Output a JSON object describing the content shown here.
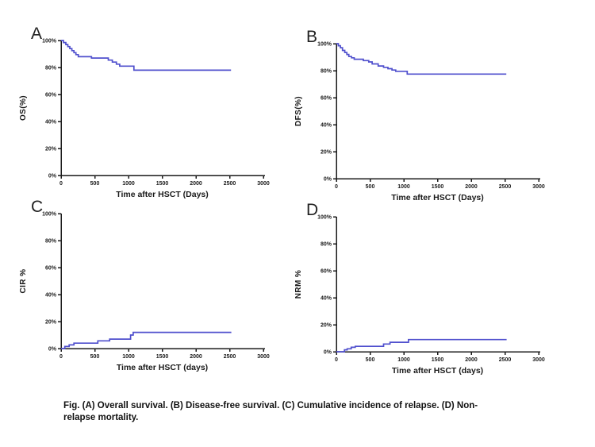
{
  "figure": {
    "background": "#ffffff",
    "curve_color": "#4f4fcd",
    "axis_color": "#1a1a1a",
    "text_color": "#1a1a1a"
  },
  "caption": {
    "line1": "Fig. (A) Overall survival. (B) Disease-free survival. (C) Cumulative incidence of relapse. (D) Non-",
    "line2": "relapse mortality."
  },
  "chart_data": [
    {
      "panel": "A",
      "type": "line",
      "subtype": "kaplan-meier-step",
      "title": "",
      "xlabel": "Time after HSCT (Days)",
      "ylabel": "OS(%)",
      "xlim": [
        0,
        3000
      ],
      "ylim": [
        0,
        100
      ],
      "xticks": [
        0,
        500,
        1000,
        1500,
        2000,
        2500,
        3000
      ],
      "xtick_labels": [
        "0",
        "500",
        "1000",
        "1500",
        "2000",
        "2500",
        "3000"
      ],
      "yticks": [
        0,
        20,
        40,
        60,
        80,
        100
      ],
      "ytick_labels": [
        "0%",
        "20%",
        "40%",
        "60%",
        "80%",
        "100%"
      ],
      "grid": false,
      "legend": "none",
      "series": [
        {
          "name": "OS",
          "points": [
            [
              0,
              100
            ],
            [
              35,
              98.5
            ],
            [
              70,
              97
            ],
            [
              100,
              95.5
            ],
            [
              130,
              94
            ],
            [
              160,
              92.5
            ],
            [
              190,
              91
            ],
            [
              220,
              89.5
            ],
            [
              255,
              88
            ],
            [
              450,
              87
            ],
            [
              700,
              85.5
            ],
            [
              760,
              84
            ],
            [
              820,
              82.5
            ],
            [
              870,
              81
            ],
            [
              1080,
              78
            ],
            [
              2520,
              78
            ]
          ]
        }
      ]
    },
    {
      "panel": "B",
      "type": "line",
      "subtype": "kaplan-meier-step",
      "title": "",
      "xlabel": "Time after HSCT (Days)",
      "ylabel": "DFS(%)",
      "xlim": [
        0,
        3000
      ],
      "ylim": [
        0,
        100
      ],
      "xticks": [
        0,
        500,
        1000,
        1500,
        2000,
        2500,
        3000
      ],
      "xtick_labels": [
        "0",
        "500",
        "1000",
        "1500",
        "2000",
        "2500",
        "3000"
      ],
      "yticks": [
        0,
        20,
        40,
        60,
        80,
        100
      ],
      "ytick_labels": [
        "0%",
        "20%",
        "40%",
        "60%",
        "80%",
        "100%"
      ],
      "grid": false,
      "legend": "none",
      "series": [
        {
          "name": "DFS",
          "points": [
            [
              0,
              100
            ],
            [
              30,
              98.5
            ],
            [
              60,
              97
            ],
            [
              90,
              95
            ],
            [
              125,
              93.5
            ],
            [
              155,
              92
            ],
            [
              185,
              90.5
            ],
            [
              225,
              89.5
            ],
            [
              265,
              88.5
            ],
            [
              400,
              87.5
            ],
            [
              480,
              86.5
            ],
            [
              530,
              85
            ],
            [
              620,
              83.5
            ],
            [
              700,
              82.5
            ],
            [
              765,
              81.5
            ],
            [
              825,
              80.5
            ],
            [
              880,
              79.5
            ],
            [
              1050,
              77.5
            ],
            [
              2520,
              77.5
            ]
          ]
        }
      ]
    },
    {
      "panel": "C",
      "type": "line",
      "subtype": "cumulative-incidence-step",
      "title": "",
      "xlabel": "Time after HSCT (days)",
      "ylabel": "CIR %",
      "xlim": [
        0,
        3000
      ],
      "ylim": [
        0,
        100
      ],
      "xticks": [
        0,
        500,
        1000,
        1500,
        2000,
        2500,
        3000
      ],
      "xtick_labels": [
        "0",
        "500",
        "1000",
        "1500",
        "2000",
        "2500",
        "3000"
      ],
      "yticks": [
        0,
        20,
        40,
        60,
        80,
        100
      ],
      "ytick_labels": [
        "0%",
        "20%",
        "40%",
        "60%",
        "80%",
        "100%"
      ],
      "grid": false,
      "legend": "none",
      "series": [
        {
          "name": "CIR",
          "points": [
            [
              0,
              0
            ],
            [
              55,
              1.5
            ],
            [
              120,
              2.7
            ],
            [
              190,
              4
            ],
            [
              545,
              5.7
            ],
            [
              720,
              7
            ],
            [
              1030,
              10
            ],
            [
              1070,
              12
            ],
            [
              2525,
              12
            ]
          ]
        }
      ]
    },
    {
      "panel": "D",
      "type": "line",
      "subtype": "cumulative-incidence-step",
      "title": "",
      "xlabel": "Time after HSCT (days)",
      "ylabel": "NRM %",
      "xlim": [
        0,
        3000
      ],
      "ylim": [
        0,
        100
      ],
      "xticks": [
        0,
        500,
        1000,
        1500,
        2000,
        2500,
        3000
      ],
      "xtick_labels": [
        "0",
        "500",
        "1000",
        "1500",
        "2000",
        "2500",
        "3000"
      ],
      "yticks": [
        0,
        20,
        40,
        60,
        80,
        100
      ],
      "ytick_labels": [
        "0%",
        "20%",
        "40%",
        "60%",
        "80%",
        "100%"
      ],
      "grid": false,
      "legend": "none",
      "series": [
        {
          "name": "NRM",
          "points": [
            [
              0,
              0
            ],
            [
              120,
              1.4
            ],
            [
              160,
              2.2
            ],
            [
              220,
              3.3
            ],
            [
              280,
              4
            ],
            [
              700,
              5.7
            ],
            [
              795,
              7
            ],
            [
              1070,
              9
            ],
            [
              2525,
              9
            ]
          ]
        }
      ]
    }
  ]
}
